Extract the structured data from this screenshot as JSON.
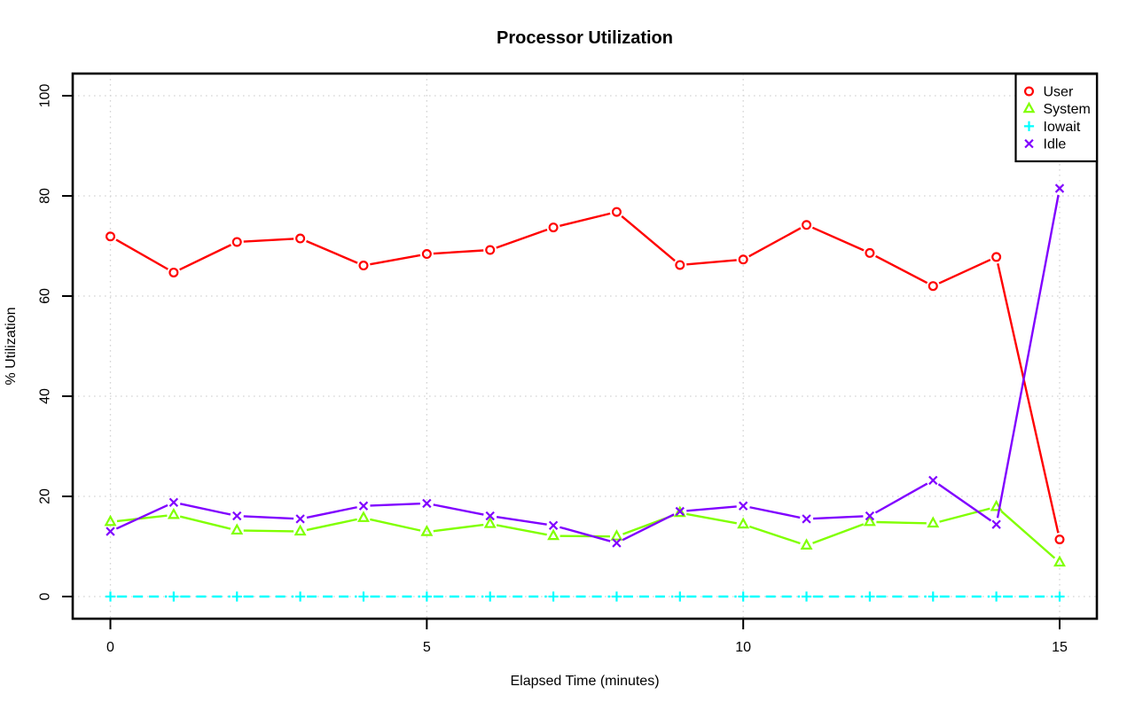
{
  "figure": {
    "background": "#FFFFFF",
    "border_color": "#000000",
    "grid_color": "#D4D4D4",
    "text_color": "#000000"
  },
  "chart_data": {
    "type": "line",
    "title": "Processor Utilization",
    "xlabel": "Elapsed Time (minutes)",
    "ylabel": "% Utilization",
    "xlim": [
      0,
      15
    ],
    "ylim": [
      0,
      100
    ],
    "grid": true,
    "grid_style": "dotted",
    "legend_position": "topright",
    "x_ticks": [
      0,
      5,
      10,
      15
    ],
    "x_tick_labels": [
      "0",
      "5",
      "10",
      "15"
    ],
    "y_ticks": [
      0,
      20,
      40,
      60,
      80,
      100
    ],
    "y_tick_labels": [
      "0",
      "20",
      "40",
      "60",
      "80",
      "100"
    ],
    "x": [
      0,
      1,
      2,
      3,
      4,
      5,
      6,
      7,
      8,
      9,
      10,
      11,
      12,
      13,
      14,
      15
    ],
    "series": [
      {
        "name": "User",
        "color": "#FF0000",
        "marker": "circle",
        "line_style": "solid",
        "values": [
          71.9,
          64.7,
          70.8,
          71.5,
          66.1,
          68.4,
          69.2,
          73.7,
          76.8,
          66.2,
          67.3,
          74.2,
          68.6,
          62.0,
          67.8,
          11.4
        ]
      },
      {
        "name": "System",
        "color": "#80FF00",
        "marker": "triangle",
        "line_style": "solid",
        "values": [
          14.9,
          16.3,
          13.2,
          13.0,
          15.7,
          12.9,
          14.5,
          12.1,
          12.0,
          16.7,
          14.4,
          10.2,
          14.9,
          14.6,
          17.9,
          6.8
        ]
      },
      {
        "name": "Iowait",
        "color": "#00FFFF",
        "marker": "plus",
        "line_style": "dashed",
        "values": [
          0,
          0,
          0,
          0,
          0,
          0,
          0,
          0,
          0,
          0,
          0,
          0,
          0,
          0,
          0,
          0
        ]
      },
      {
        "name": "Idle",
        "color": "#8000FF",
        "marker": "x",
        "line_style": "solid",
        "values": [
          13.0,
          18.8,
          16.1,
          15.5,
          18.1,
          18.6,
          16.1,
          14.2,
          10.7,
          17.0,
          18.1,
          15.5,
          16.1,
          23.2,
          14.4,
          81.5
        ]
      }
    ]
  }
}
